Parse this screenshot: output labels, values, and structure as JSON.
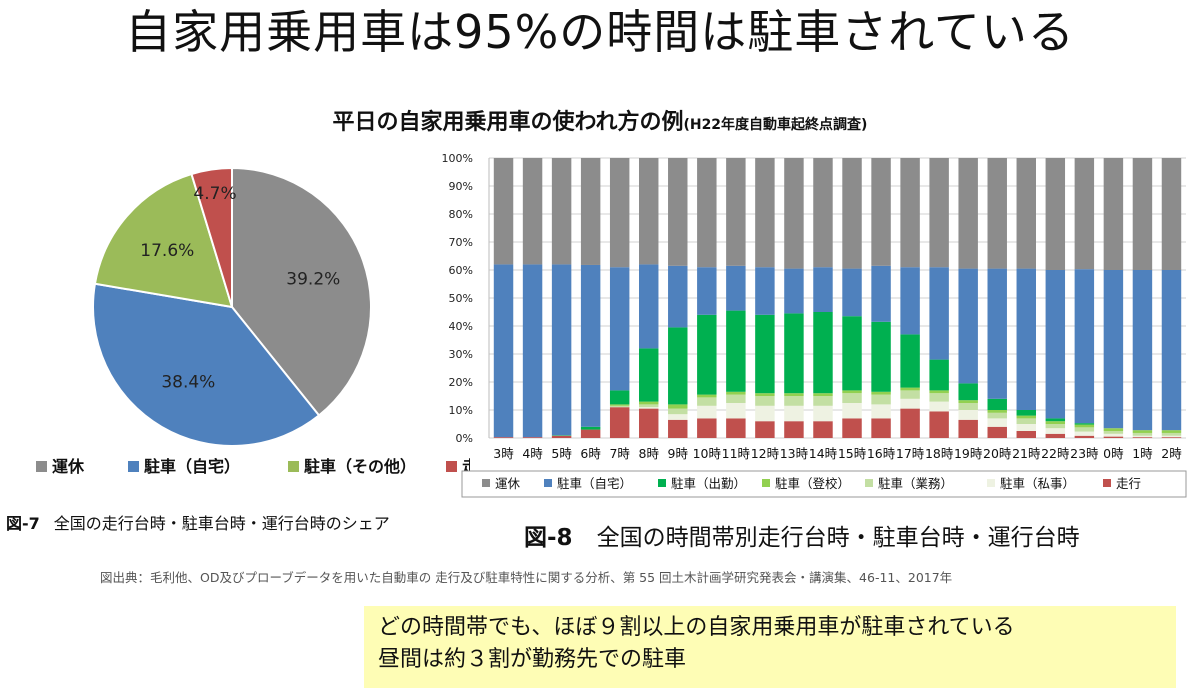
{
  "page": {
    "title": "自家用乗用車は95%の時間は駐車されている",
    "subtitle_main": "平日の自家用乗用車の使われ方の例",
    "subtitle_note": "(H22年度自動車起終点調査)",
    "fig7_label": "図-7",
    "fig7_caption": "全国の走行台時・駐車台時・運行台時のシェア",
    "fig8_label": "図-8",
    "fig8_caption": "全国の時間帯別走行台時・駐車台時・運行台時",
    "source": "図出典：毛利他、OD及びプローブデータを用いた自動車の 走行及び駐車特性に関する分析、第 55 回土木計画学研究発表会・講演集、46-11、2017年",
    "note_line1": "どの時間帯でも、ほぼ９割以上の自家用乗用車が駐車されている",
    "note_line2": "昼間は約３割が勤務先での駐車"
  },
  "colors": {
    "idle": "#8c8c8c",
    "park_home": "#4f81bd",
    "park_other": "#9bbb59",
    "driving": "#c0504d",
    "park_work": "#00b050",
    "park_school": "#92d050",
    "park_business": "#c3dfa3",
    "park_private": "#eef2e2"
  },
  "chart_data": [
    {
      "type": "pie",
      "title": "全国の走行台時・駐車台時・運行台時のシェア",
      "slices": [
        {
          "name": "運休",
          "value": 39.2,
          "label": "39.2%",
          "color_key": "idle"
        },
        {
          "name": "駐車（自宅）",
          "value": 38.4,
          "label": "38.4%",
          "color_key": "park_home"
        },
        {
          "name": "駐車（その他）",
          "value": 17.6,
          "label": "17.6%",
          "color_key": "park_other"
        },
        {
          "name": "走行",
          "value": 4.7,
          "label": "4.7%",
          "color_key": "driving"
        }
      ],
      "legend_position": "bottom"
    },
    {
      "type": "bar",
      "stacked": true,
      "title": "全国の時間帯別走行台時・駐車台時・運行台時",
      "categories": [
        "3時",
        "4時",
        "5時",
        "6時",
        "7時",
        "8時",
        "9時",
        "10時",
        "11時",
        "12時",
        "13時",
        "14時",
        "15時",
        "16時",
        "17時",
        "18時",
        "19時",
        "20時",
        "21時",
        "22時",
        "23時",
        "0時",
        "1時",
        "2時"
      ],
      "yticks": [
        "0%",
        "10%",
        "20%",
        "30%",
        "40%",
        "50%",
        "60%",
        "70%",
        "80%",
        "90%",
        "100%"
      ],
      "ylim": [
        0,
        100
      ],
      "legend_position": "bottom",
      "series": [
        {
          "name": "走行",
          "color_key": "driving",
          "values": [
            0.3,
            0.3,
            0.8,
            3,
            11,
            10.5,
            6.5,
            7,
            7,
            6,
            6,
            6,
            7,
            7,
            10.5,
            9.5,
            6.5,
            4,
            2.5,
            1.5,
            0.8,
            0.5,
            0.3,
            0.3
          ]
        },
        {
          "name": "駐車（私事）",
          "color_key": "park_private",
          "values": [
            0,
            0,
            0,
            0,
            0,
            0.5,
            2,
            4.5,
            5.5,
            5.5,
            5.5,
            5.5,
            5.5,
            5,
            3.5,
            3.5,
            3.5,
            3,
            2.5,
            2,
            1.5,
            1,
            0.5,
            0.5
          ]
        },
        {
          "name": "駐車（業務）",
          "color_key": "park_business",
          "values": [
            0,
            0,
            0,
            0,
            0.5,
            1,
            2,
            3,
            3,
            3.5,
            3.5,
            3.5,
            3.5,
            3.5,
            3,
            3,
            2.5,
            2,
            2,
            1.5,
            1.5,
            1,
            1,
            1
          ]
        },
        {
          "name": "駐車（登校）",
          "color_key": "park_school",
          "values": [
            0,
            0,
            0,
            0,
            0.5,
            1,
            1.5,
            1,
            1,
            1,
            1,
            1,
            1,
            1,
            1,
            1,
            1,
            1,
            1,
            1,
            1,
            1,
            1,
            1
          ]
        },
        {
          "name": "駐車（出勤）",
          "color_key": "park_work",
          "values": [
            0,
            0,
            0.2,
            1,
            5,
            19,
            27.5,
            28.5,
            29,
            28,
            28.5,
            29,
            26.5,
            25,
            19,
            11,
            6,
            4,
            2,
            1,
            0.5,
            0,
            0,
            0
          ]
        },
        {
          "name": "駐車（自宅）",
          "color_key": "park_home",
          "values": [
            61.7,
            61.7,
            61,
            57.8,
            44,
            30,
            22,
            17,
            16,
            17,
            16,
            16,
            17,
            20,
            24,
            33,
            41,
            46.5,
            50.5,
            53,
            55,
            56.5,
            57.2,
            57.2
          ]
        },
        {
          "name": "運休",
          "color_key": "idle",
          "values": [
            38,
            38,
            38,
            38.2,
            39,
            38,
            38.5,
            39,
            38.5,
            39,
            39.5,
            39,
            39.5,
            38.5,
            39,
            39,
            39.5,
            39.5,
            39.5,
            40,
            39.7,
            40,
            40,
            40
          ]
        }
      ],
      "legend_order": [
        "運休",
        "駐車（自宅）",
        "駐車（出勤）",
        "駐車（登校）",
        "駐車（業務）",
        "駐車（私事）",
        "走行"
      ]
    }
  ]
}
